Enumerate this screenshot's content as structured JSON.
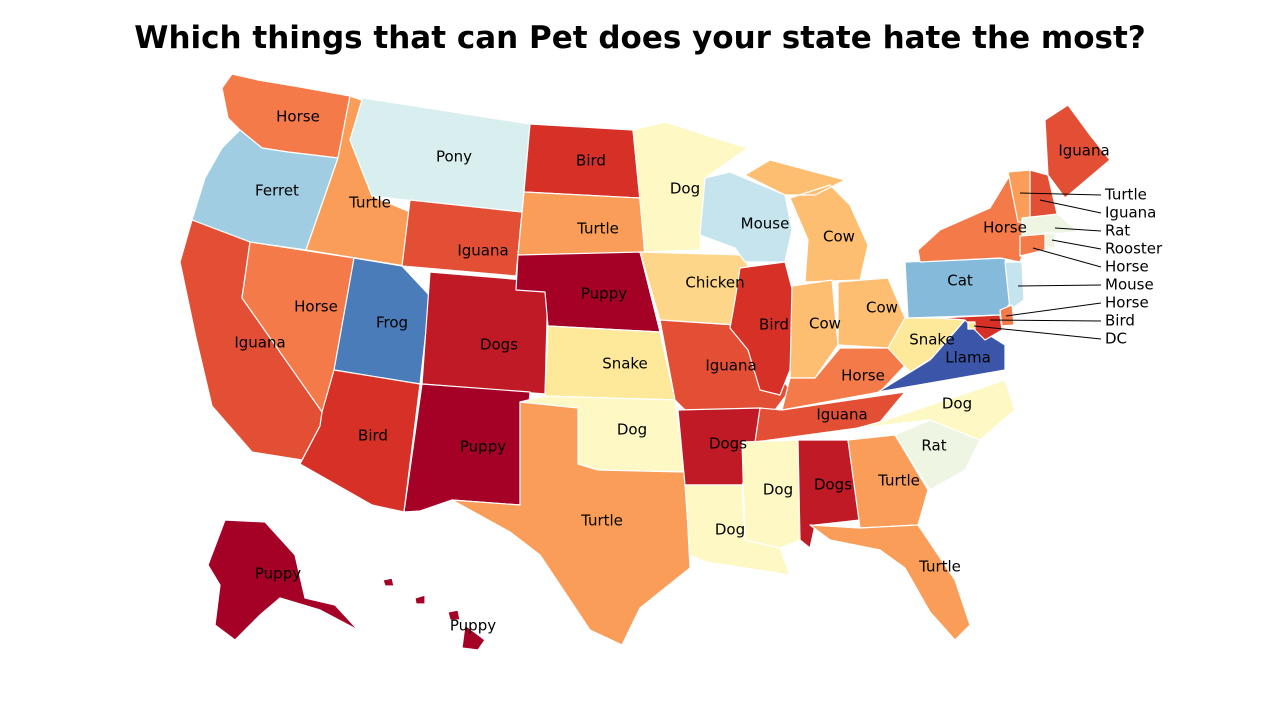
{
  "title": "Which things that can Pet does your state hate the most?",
  "colors": {
    "Puppy": "#a50026",
    "Dogs": "#c01a27",
    "Bird": "#d73027",
    "Iguana": "#e34f34",
    "Horse": "#f47a4a",
    "Turtle": "#f99d59",
    "Cow": "#fdbe71",
    "Chicken": "#fed68a",
    "Snake": "#fee99a",
    "Dog": "#fdf8c4",
    "Rat": "#eef6e3",
    "Rooster": "#eef6e3",
    "Pony": "#d9eeee",
    "Mouse": "#c5e4ee",
    "Ferret": "#a0cde2",
    "Cat": "#85bada",
    "Frog": "#4a7cba",
    "Llama": "#3b56a8",
    "DC": "#fee99a"
  },
  "states": [
    {
      "abbr": "WA",
      "label": "Horse"
    },
    {
      "abbr": "OR",
      "label": "Ferret"
    },
    {
      "abbr": "CA",
      "label": "Iguana"
    },
    {
      "abbr": "ID",
      "label": "Turtle"
    },
    {
      "abbr": "NV",
      "label": "Horse"
    },
    {
      "abbr": "MT",
      "label": "Pony"
    },
    {
      "abbr": "WY",
      "label": "Iguana"
    },
    {
      "abbr": "UT",
      "label": "Frog"
    },
    {
      "abbr": "AZ",
      "label": "Bird"
    },
    {
      "abbr": "CO",
      "label": "Dogs"
    },
    {
      "abbr": "NM",
      "label": "Puppy"
    },
    {
      "abbr": "ND",
      "label": "Bird"
    },
    {
      "abbr": "SD",
      "label": "Turtle"
    },
    {
      "abbr": "NE",
      "label": "Puppy"
    },
    {
      "abbr": "KS",
      "label": "Snake"
    },
    {
      "abbr": "OK",
      "label": "Dog"
    },
    {
      "abbr": "TX",
      "label": "Turtle"
    },
    {
      "abbr": "MN",
      "label": "Dog"
    },
    {
      "abbr": "IA",
      "label": "Chicken"
    },
    {
      "abbr": "MO",
      "label": "Iguana"
    },
    {
      "abbr": "AR",
      "label": "Dogs"
    },
    {
      "abbr": "LA",
      "label": "Dog"
    },
    {
      "abbr": "WI",
      "label": "Mouse"
    },
    {
      "abbr": "IL",
      "label": "Bird"
    },
    {
      "abbr": "MI",
      "label": "Cow"
    },
    {
      "abbr": "IN",
      "label": "Cow"
    },
    {
      "abbr": "OH",
      "label": "Cow"
    },
    {
      "abbr": "KY",
      "label": "Horse"
    },
    {
      "abbr": "TN",
      "label": "Iguana"
    },
    {
      "abbr": "MS",
      "label": "Dog"
    },
    {
      "abbr": "AL",
      "label": "Dogs"
    },
    {
      "abbr": "GA",
      "label": "Turtle"
    },
    {
      "abbr": "FL",
      "label": "Turtle"
    },
    {
      "abbr": "SC",
      "label": "Rat"
    },
    {
      "abbr": "NC",
      "label": "Dog"
    },
    {
      "abbr": "VA",
      "label": "Llama"
    },
    {
      "abbr": "WV",
      "label": "Snake"
    },
    {
      "abbr": "PA",
      "label": "Cat"
    },
    {
      "abbr": "NY",
      "label": "Horse"
    },
    {
      "abbr": "ME",
      "label": "Iguana"
    },
    {
      "abbr": "AK",
      "label": "Puppy"
    },
    {
      "abbr": "HI",
      "label": "Puppy"
    },
    {
      "abbr": "VT",
      "label": "Turtle"
    },
    {
      "abbr": "NH",
      "label": "Iguana"
    },
    {
      "abbr": "MA",
      "label": "Rat"
    },
    {
      "abbr": "RI",
      "label": "Rooster"
    },
    {
      "abbr": "CT",
      "label": "Horse"
    },
    {
      "abbr": "NJ",
      "label": "Mouse"
    },
    {
      "abbr": "DE",
      "label": "Horse"
    },
    {
      "abbr": "MD",
      "label": "Bird"
    },
    {
      "abbr": "DC",
      "label": "DC"
    }
  ]
}
